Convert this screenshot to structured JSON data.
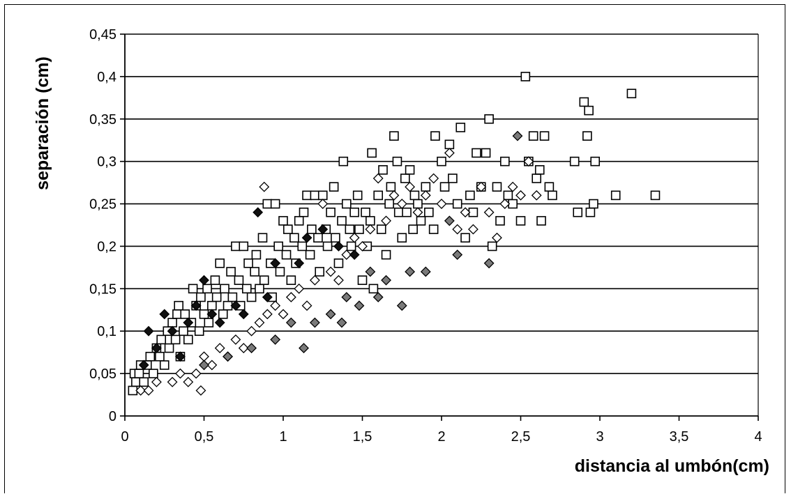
{
  "chart_data": {
    "type": "scatter",
    "title": "",
    "xlabel": "distancia al umbón(cm)",
    "ylabel": "separación (cm)",
    "xlim": [
      0,
      4
    ],
    "ylim": [
      0,
      0.45
    ],
    "x_ticks": [
      "0",
      "0,5",
      "1",
      "1,5",
      "2",
      "2,5",
      "3",
      "3,5",
      "4"
    ],
    "y_ticks": [
      "0",
      "0,05",
      "0,1",
      "0,15",
      "0,2",
      "0,25",
      "0,3",
      "0,35",
      "0,4",
      "0,45"
    ],
    "grid": "horizontal",
    "legend": "none",
    "colors": {
      "series_open_square": "#ffffff",
      "series_open_diamond": "#ffffff",
      "series_gray_diamond": "#7a7a7a",
      "series_black_diamond": "#111111",
      "stroke": "#000000",
      "gridline": "#000000"
    },
    "series": [
      {
        "marker": "square-open",
        "points": [
          [
            0.05,
            0.03
          ],
          [
            0.07,
            0.04
          ],
          [
            0.06,
            0.05
          ],
          [
            0.09,
            0.05
          ],
          [
            0.1,
            0.06
          ],
          [
            0.12,
            0.04
          ],
          [
            0.14,
            0.06
          ],
          [
            0.16,
            0.07
          ],
          [
            0.18,
            0.05
          ],
          [
            0.2,
            0.08
          ],
          [
            0.22,
            0.07
          ],
          [
            0.23,
            0.09
          ],
          [
            0.25,
            0.06
          ],
          [
            0.27,
            0.1
          ],
          [
            0.28,
            0.08
          ],
          [
            0.3,
            0.11
          ],
          [
            0.32,
            0.09
          ],
          [
            0.33,
            0.12
          ],
          [
            0.34,
            0.13
          ],
          [
            0.35,
            0.07
          ],
          [
            0.37,
            0.1
          ],
          [
            0.38,
            0.12
          ],
          [
            0.4,
            0.09
          ],
          [
            0.42,
            0.11
          ],
          [
            0.43,
            0.15
          ],
          [
            0.45,
            0.13
          ],
          [
            0.47,
            0.1
          ],
          [
            0.48,
            0.14
          ],
          [
            0.5,
            0.12
          ],
          [
            0.52,
            0.15
          ],
          [
            0.53,
            0.11
          ],
          [
            0.55,
            0.13
          ],
          [
            0.57,
            0.16
          ],
          [
            0.58,
            0.14
          ],
          [
            0.6,
            0.18
          ],
          [
            0.62,
            0.12
          ],
          [
            0.63,
            0.15
          ],
          [
            0.65,
            0.13
          ],
          [
            0.67,
            0.17
          ],
          [
            0.68,
            0.14
          ],
          [
            0.7,
            0.2
          ],
          [
            0.72,
            0.16
          ],
          [
            0.73,
            0.13
          ],
          [
            0.75,
            0.2
          ],
          [
            0.77,
            0.15
          ],
          [
            0.78,
            0.18
          ],
          [
            0.8,
            0.14
          ],
          [
            0.82,
            0.17
          ],
          [
            0.83,
            0.19
          ],
          [
            0.85,
            0.15
          ],
          [
            0.87,
            0.21
          ],
          [
            0.88,
            0.16
          ],
          [
            0.9,
            0.25
          ],
          [
            0.92,
            0.18
          ],
          [
            0.93,
            0.14
          ],
          [
            0.95,
            0.25
          ],
          [
            0.97,
            0.2
          ],
          [
            0.98,
            0.17
          ],
          [
            1.0,
            0.23
          ],
          [
            1.02,
            0.19
          ],
          [
            1.03,
            0.22
          ],
          [
            1.05,
            0.16
          ],
          [
            1.07,
            0.21
          ],
          [
            1.08,
            0.18
          ],
          [
            1.1,
            0.23
          ],
          [
            1.12,
            0.2
          ],
          [
            1.13,
            0.24
          ],
          [
            1.15,
            0.26
          ],
          [
            1.17,
            0.19
          ],
          [
            1.18,
            0.22
          ],
          [
            1.2,
            0.26
          ],
          [
            1.22,
            0.21
          ],
          [
            1.23,
            0.17
          ],
          [
            1.25,
            0.26
          ],
          [
            1.27,
            0.22
          ],
          [
            1.28,
            0.2
          ],
          [
            1.3,
            0.24
          ],
          [
            1.32,
            0.27
          ],
          [
            1.33,
            0.21
          ],
          [
            1.35,
            0.18
          ],
          [
            1.37,
            0.23
          ],
          [
            1.38,
            0.3
          ],
          [
            1.4,
            0.25
          ],
          [
            1.42,
            0.22
          ],
          [
            1.43,
            0.2
          ],
          [
            1.45,
            0.24
          ],
          [
            1.47,
            0.26
          ],
          [
            1.48,
            0.22
          ],
          [
            1.5,
            0.16
          ],
          [
            1.52,
            0.24
          ],
          [
            1.53,
            0.2
          ],
          [
            1.55,
            0.23
          ],
          [
            1.56,
            0.31
          ],
          [
            1.57,
            0.15
          ],
          [
            1.6,
            0.26
          ],
          [
            1.62,
            0.22
          ],
          [
            1.63,
            0.29
          ],
          [
            1.65,
            0.19
          ],
          [
            1.67,
            0.25
          ],
          [
            1.68,
            0.27
          ],
          [
            1.7,
            0.33
          ],
          [
            1.72,
            0.3
          ],
          [
            1.73,
            0.24
          ],
          [
            1.75,
            0.21
          ],
          [
            1.77,
            0.28
          ],
          [
            1.78,
            0.24
          ],
          [
            1.8,
            0.29
          ],
          [
            1.82,
            0.22
          ],
          [
            1.83,
            0.26
          ],
          [
            1.85,
            0.25
          ],
          [
            1.87,
            0.23
          ],
          [
            1.9,
            0.27
          ],
          [
            1.92,
            0.24
          ],
          [
            1.95,
            0.22
          ],
          [
            1.96,
            0.33
          ],
          [
            2.0,
            0.3
          ],
          [
            2.02,
            0.27
          ],
          [
            2.05,
            0.32
          ],
          [
            2.07,
            0.28
          ],
          [
            2.1,
            0.25
          ],
          [
            2.12,
            0.34
          ],
          [
            2.15,
            0.21
          ],
          [
            2.18,
            0.26
          ],
          [
            2.2,
            0.24
          ],
          [
            2.22,
            0.31
          ],
          [
            2.25,
            0.27
          ],
          [
            2.28,
            0.31
          ],
          [
            2.3,
            0.35
          ],
          [
            2.32,
            0.2
          ],
          [
            2.35,
            0.27
          ],
          [
            2.37,
            0.23
          ],
          [
            2.4,
            0.3
          ],
          [
            2.42,
            0.26
          ],
          [
            2.45,
            0.25
          ],
          [
            2.5,
            0.23
          ],
          [
            2.53,
            0.4
          ],
          [
            2.55,
            0.3
          ],
          [
            2.58,
            0.33
          ],
          [
            2.6,
            0.28
          ],
          [
            2.62,
            0.29
          ],
          [
            2.63,
            0.23
          ],
          [
            2.65,
            0.33
          ],
          [
            2.68,
            0.27
          ],
          [
            2.7,
            0.26
          ],
          [
            2.84,
            0.3
          ],
          [
            2.86,
            0.24
          ],
          [
            2.9,
            0.37
          ],
          [
            2.92,
            0.33
          ],
          [
            2.93,
            0.36
          ],
          [
            2.94,
            0.24
          ],
          [
            2.96,
            0.25
          ],
          [
            2.97,
            0.3
          ],
          [
            3.1,
            0.26
          ],
          [
            3.2,
            0.38
          ],
          [
            3.35,
            0.26
          ]
        ]
      },
      {
        "marker": "diamond-open",
        "points": [
          [
            0.1,
            0.03
          ],
          [
            0.15,
            0.03
          ],
          [
            0.2,
            0.04
          ],
          [
            0.3,
            0.04
          ],
          [
            0.35,
            0.05
          ],
          [
            0.4,
            0.04
          ],
          [
            0.45,
            0.05
          ],
          [
            0.48,
            0.03
          ],
          [
            0.5,
            0.07
          ],
          [
            0.55,
            0.06
          ],
          [
            0.6,
            0.08
          ],
          [
            0.65,
            0.07
          ],
          [
            0.7,
            0.09
          ],
          [
            0.75,
            0.08
          ],
          [
            0.8,
            0.1
          ],
          [
            0.85,
            0.11
          ],
          [
            0.88,
            0.27
          ],
          [
            0.9,
            0.12
          ],
          [
            0.95,
            0.13
          ],
          [
            1.0,
            0.12
          ],
          [
            1.05,
            0.14
          ],
          [
            1.1,
            0.15
          ],
          [
            1.15,
            0.13
          ],
          [
            1.2,
            0.16
          ],
          [
            1.25,
            0.25
          ],
          [
            1.3,
            0.17
          ],
          [
            1.35,
            0.16
          ],
          [
            1.4,
            0.19
          ],
          [
            1.45,
            0.21
          ],
          [
            1.5,
            0.2
          ],
          [
            1.55,
            0.22
          ],
          [
            1.6,
            0.28
          ],
          [
            1.65,
            0.23
          ],
          [
            1.7,
            0.26
          ],
          [
            1.75,
            0.25
          ],
          [
            1.8,
            0.27
          ],
          [
            1.85,
            0.24
          ],
          [
            1.9,
            0.26
          ],
          [
            1.95,
            0.28
          ],
          [
            2.0,
            0.25
          ],
          [
            2.05,
            0.31
          ],
          [
            2.1,
            0.22
          ],
          [
            2.15,
            0.24
          ],
          [
            2.2,
            0.22
          ],
          [
            2.25,
            0.27
          ],
          [
            2.3,
            0.24
          ],
          [
            2.35,
            0.21
          ],
          [
            2.4,
            0.25
          ],
          [
            2.45,
            0.27
          ],
          [
            2.5,
            0.26
          ],
          [
            2.55,
            0.3
          ],
          [
            2.6,
            0.26
          ]
        ]
      },
      {
        "marker": "diamond-gray",
        "points": [
          [
            0.5,
            0.06
          ],
          [
            0.65,
            0.07
          ],
          [
            0.8,
            0.08
          ],
          [
            0.95,
            0.09
          ],
          [
            1.05,
            0.11
          ],
          [
            1.13,
            0.08
          ],
          [
            1.2,
            0.11
          ],
          [
            1.3,
            0.12
          ],
          [
            1.37,
            0.11
          ],
          [
            1.4,
            0.14
          ],
          [
            1.48,
            0.13
          ],
          [
            1.55,
            0.17
          ],
          [
            1.6,
            0.14
          ],
          [
            1.65,
            0.16
          ],
          [
            1.75,
            0.13
          ],
          [
            1.8,
            0.17
          ],
          [
            1.9,
            0.17
          ],
          [
            2.05,
            0.23
          ],
          [
            2.1,
            0.19
          ],
          [
            2.3,
            0.18
          ],
          [
            2.48,
            0.33
          ]
        ]
      },
      {
        "marker": "diamond-black",
        "points": [
          [
            0.12,
            0.06
          ],
          [
            0.15,
            0.1
          ],
          [
            0.2,
            0.08
          ],
          [
            0.25,
            0.12
          ],
          [
            0.3,
            0.1
          ],
          [
            0.35,
            0.07
          ],
          [
            0.4,
            0.11
          ],
          [
            0.45,
            0.13
          ],
          [
            0.5,
            0.16
          ],
          [
            0.55,
            0.12
          ],
          [
            0.6,
            0.11
          ],
          [
            0.7,
            0.13
          ],
          [
            0.75,
            0.12
          ],
          [
            0.84,
            0.24
          ],
          [
            0.9,
            0.14
          ],
          [
            0.95,
            0.18
          ],
          [
            1.1,
            0.18
          ],
          [
            1.15,
            0.21
          ],
          [
            1.25,
            0.22
          ],
          [
            1.35,
            0.2
          ],
          [
            1.45,
            0.19
          ]
        ]
      }
    ]
  }
}
